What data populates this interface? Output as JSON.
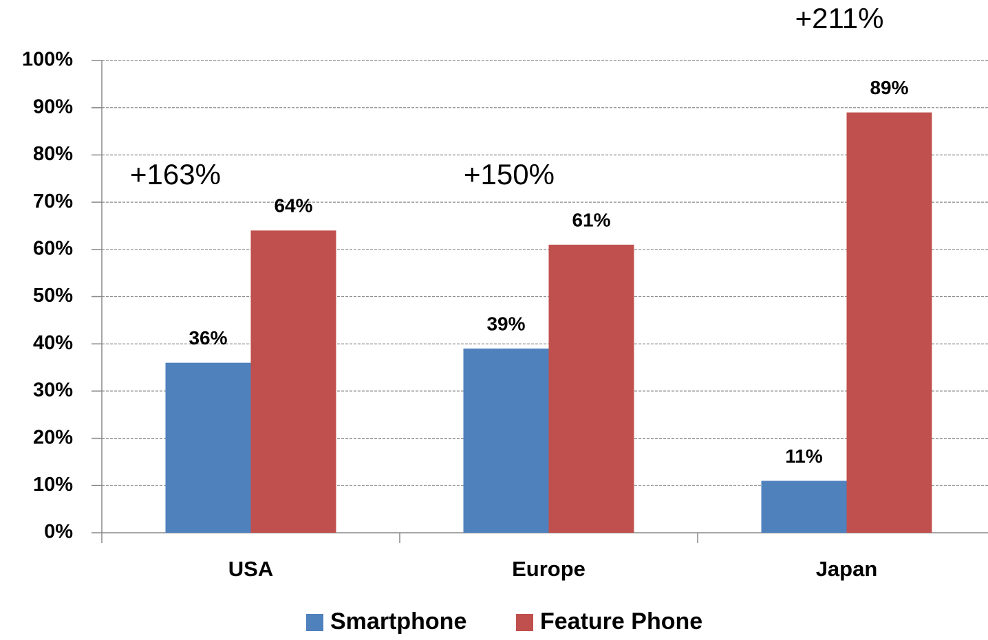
{
  "chart_data": {
    "type": "bar",
    "categories": [
      "USA",
      "Europe",
      "Japan"
    ],
    "series": [
      {
        "name": "Smartphone",
        "color": "#4f81bd",
        "values": [
          36,
          39,
          11
        ],
        "value_labels": [
          "36%",
          "39%",
          "11%"
        ]
      },
      {
        "name": "Feature Phone",
        "color": "#c0504d",
        "values": [
          64,
          61,
          89
        ],
        "value_labels": [
          "64%",
          "61%",
          "89%"
        ]
      }
    ],
    "annotations": [
      "+163%",
      "+150%",
      "+211%"
    ],
    "ylim": [
      0,
      100
    ],
    "yticks": [
      {
        "value": 0,
        "label": "0%"
      },
      {
        "value": 10,
        "label": "10%"
      },
      {
        "value": 20,
        "label": "20%"
      },
      {
        "value": 30,
        "label": "30%"
      },
      {
        "value": 40,
        "label": "40%"
      },
      {
        "value": 50,
        "label": "50%"
      },
      {
        "value": 60,
        "label": "60%"
      },
      {
        "value": 70,
        "label": "70%"
      },
      {
        "value": 80,
        "label": "80%"
      },
      {
        "value": 90,
        "label": "90%"
      },
      {
        "value": 100,
        "label": "100%"
      }
    ],
    "grid": true,
    "legend": "bottom"
  }
}
